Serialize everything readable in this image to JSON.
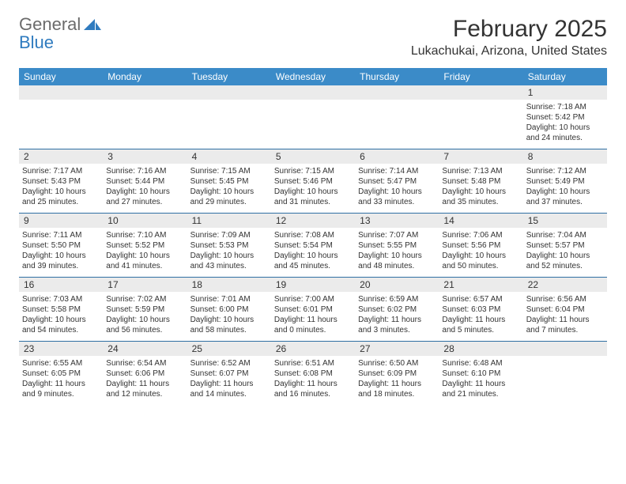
{
  "brand": {
    "word1": "General",
    "word2": "Blue",
    "color_general": "#6b6b6b",
    "color_blue": "#2f7bbf",
    "mark_color": "#2f7bbf"
  },
  "title": "February 2025",
  "location": "Lukachukai, Arizona, United States",
  "colors": {
    "header_bg": "#3b8bc8",
    "header_text": "#ffffff",
    "week_divider": "#2f6fa3",
    "daynum_bg": "#ebebeb",
    "text": "#333333",
    "page_bg": "#ffffff"
  },
  "day_names": [
    "Sunday",
    "Monday",
    "Tuesday",
    "Wednesday",
    "Thursday",
    "Friday",
    "Saturday"
  ],
  "weeks": [
    [
      {
        "n": "",
        "sr": "",
        "ss": "",
        "dl": ""
      },
      {
        "n": "",
        "sr": "",
        "ss": "",
        "dl": ""
      },
      {
        "n": "",
        "sr": "",
        "ss": "",
        "dl": ""
      },
      {
        "n": "",
        "sr": "",
        "ss": "",
        "dl": ""
      },
      {
        "n": "",
        "sr": "",
        "ss": "",
        "dl": ""
      },
      {
        "n": "",
        "sr": "",
        "ss": "",
        "dl": ""
      },
      {
        "n": "1",
        "sr": "Sunrise: 7:18 AM",
        "ss": "Sunset: 5:42 PM",
        "dl": "Daylight: 10 hours and 24 minutes."
      }
    ],
    [
      {
        "n": "2",
        "sr": "Sunrise: 7:17 AM",
        "ss": "Sunset: 5:43 PM",
        "dl": "Daylight: 10 hours and 25 minutes."
      },
      {
        "n": "3",
        "sr": "Sunrise: 7:16 AM",
        "ss": "Sunset: 5:44 PM",
        "dl": "Daylight: 10 hours and 27 minutes."
      },
      {
        "n": "4",
        "sr": "Sunrise: 7:15 AM",
        "ss": "Sunset: 5:45 PM",
        "dl": "Daylight: 10 hours and 29 minutes."
      },
      {
        "n": "5",
        "sr": "Sunrise: 7:15 AM",
        "ss": "Sunset: 5:46 PM",
        "dl": "Daylight: 10 hours and 31 minutes."
      },
      {
        "n": "6",
        "sr": "Sunrise: 7:14 AM",
        "ss": "Sunset: 5:47 PM",
        "dl": "Daylight: 10 hours and 33 minutes."
      },
      {
        "n": "7",
        "sr": "Sunrise: 7:13 AM",
        "ss": "Sunset: 5:48 PM",
        "dl": "Daylight: 10 hours and 35 minutes."
      },
      {
        "n": "8",
        "sr": "Sunrise: 7:12 AM",
        "ss": "Sunset: 5:49 PM",
        "dl": "Daylight: 10 hours and 37 minutes."
      }
    ],
    [
      {
        "n": "9",
        "sr": "Sunrise: 7:11 AM",
        "ss": "Sunset: 5:50 PM",
        "dl": "Daylight: 10 hours and 39 minutes."
      },
      {
        "n": "10",
        "sr": "Sunrise: 7:10 AM",
        "ss": "Sunset: 5:52 PM",
        "dl": "Daylight: 10 hours and 41 minutes."
      },
      {
        "n": "11",
        "sr": "Sunrise: 7:09 AM",
        "ss": "Sunset: 5:53 PM",
        "dl": "Daylight: 10 hours and 43 minutes."
      },
      {
        "n": "12",
        "sr": "Sunrise: 7:08 AM",
        "ss": "Sunset: 5:54 PM",
        "dl": "Daylight: 10 hours and 45 minutes."
      },
      {
        "n": "13",
        "sr": "Sunrise: 7:07 AM",
        "ss": "Sunset: 5:55 PM",
        "dl": "Daylight: 10 hours and 48 minutes."
      },
      {
        "n": "14",
        "sr": "Sunrise: 7:06 AM",
        "ss": "Sunset: 5:56 PM",
        "dl": "Daylight: 10 hours and 50 minutes."
      },
      {
        "n": "15",
        "sr": "Sunrise: 7:04 AM",
        "ss": "Sunset: 5:57 PM",
        "dl": "Daylight: 10 hours and 52 minutes."
      }
    ],
    [
      {
        "n": "16",
        "sr": "Sunrise: 7:03 AM",
        "ss": "Sunset: 5:58 PM",
        "dl": "Daylight: 10 hours and 54 minutes."
      },
      {
        "n": "17",
        "sr": "Sunrise: 7:02 AM",
        "ss": "Sunset: 5:59 PM",
        "dl": "Daylight: 10 hours and 56 minutes."
      },
      {
        "n": "18",
        "sr": "Sunrise: 7:01 AM",
        "ss": "Sunset: 6:00 PM",
        "dl": "Daylight: 10 hours and 58 minutes."
      },
      {
        "n": "19",
        "sr": "Sunrise: 7:00 AM",
        "ss": "Sunset: 6:01 PM",
        "dl": "Daylight: 11 hours and 0 minutes."
      },
      {
        "n": "20",
        "sr": "Sunrise: 6:59 AM",
        "ss": "Sunset: 6:02 PM",
        "dl": "Daylight: 11 hours and 3 minutes."
      },
      {
        "n": "21",
        "sr": "Sunrise: 6:57 AM",
        "ss": "Sunset: 6:03 PM",
        "dl": "Daylight: 11 hours and 5 minutes."
      },
      {
        "n": "22",
        "sr": "Sunrise: 6:56 AM",
        "ss": "Sunset: 6:04 PM",
        "dl": "Daylight: 11 hours and 7 minutes."
      }
    ],
    [
      {
        "n": "23",
        "sr": "Sunrise: 6:55 AM",
        "ss": "Sunset: 6:05 PM",
        "dl": "Daylight: 11 hours and 9 minutes."
      },
      {
        "n": "24",
        "sr": "Sunrise: 6:54 AM",
        "ss": "Sunset: 6:06 PM",
        "dl": "Daylight: 11 hours and 12 minutes."
      },
      {
        "n": "25",
        "sr": "Sunrise: 6:52 AM",
        "ss": "Sunset: 6:07 PM",
        "dl": "Daylight: 11 hours and 14 minutes."
      },
      {
        "n": "26",
        "sr": "Sunrise: 6:51 AM",
        "ss": "Sunset: 6:08 PM",
        "dl": "Daylight: 11 hours and 16 minutes."
      },
      {
        "n": "27",
        "sr": "Sunrise: 6:50 AM",
        "ss": "Sunset: 6:09 PM",
        "dl": "Daylight: 11 hours and 18 minutes."
      },
      {
        "n": "28",
        "sr": "Sunrise: 6:48 AM",
        "ss": "Sunset: 6:10 PM",
        "dl": "Daylight: 11 hours and 21 minutes."
      },
      {
        "n": "",
        "sr": "",
        "ss": "",
        "dl": ""
      }
    ]
  ]
}
